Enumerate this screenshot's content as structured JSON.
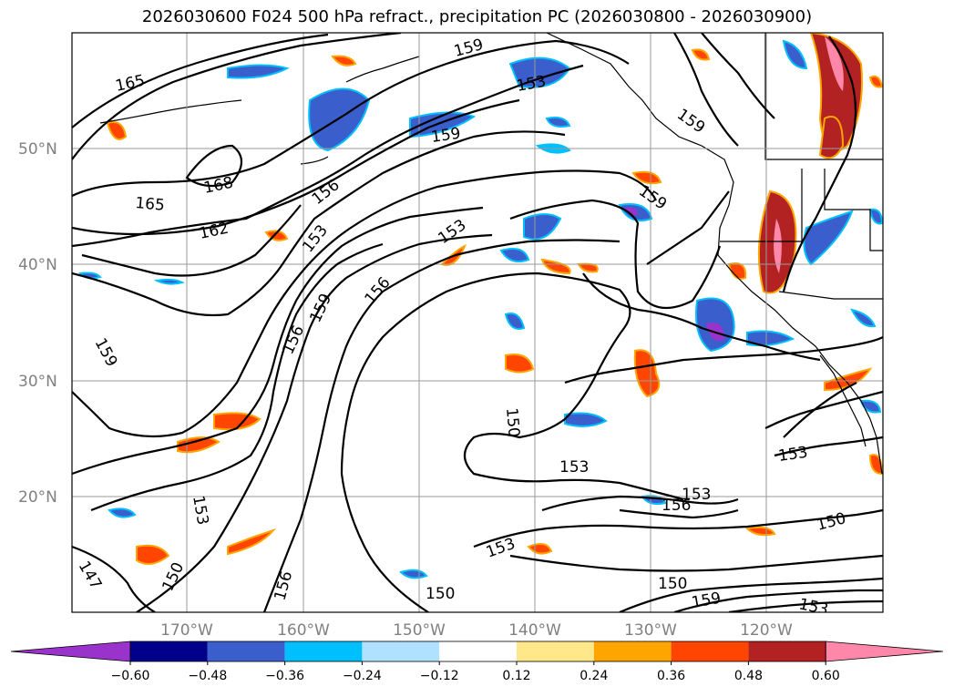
{
  "title": "2026030600 F024 500 hPa refract., precipitation PC (2026030800 - 2026030900)",
  "lat_labels": [
    "50°N",
    "40°N",
    "30°N",
    "20°N"
  ],
  "lon_labels": [
    "170°W",
    "160°W",
    "150°W",
    "140°W",
    "130°W",
    "120°W"
  ],
  "colorbar": {
    "colors": [
      "#9a33cc",
      "#00008b",
      "#3a5fcd",
      "#00bfff",
      "#b0e2ff",
      "#ffffff",
      "#ffe88a",
      "#ffa500",
      "#ff4500",
      "#b22222",
      "#ff88aa"
    ],
    "ticks": [
      "−0.60",
      "−0.48",
      "−0.36",
      "−0.24",
      "−0.12",
      "0.12",
      "0.24",
      "0.36",
      "0.48",
      "0.60"
    ]
  },
  "contour_labels": [
    "165",
    "168",
    "165",
    "162",
    "159",
    "153",
    "159",
    "156",
    "153",
    "159",
    "159",
    "153",
    "156",
    "159",
    "156",
    "159",
    "153",
    "150",
    "153",
    "153",
    "156",
    "153",
    "150",
    "150",
    "153",
    "156",
    "147",
    "150",
    "150",
    "159",
    "153"
  ]
}
